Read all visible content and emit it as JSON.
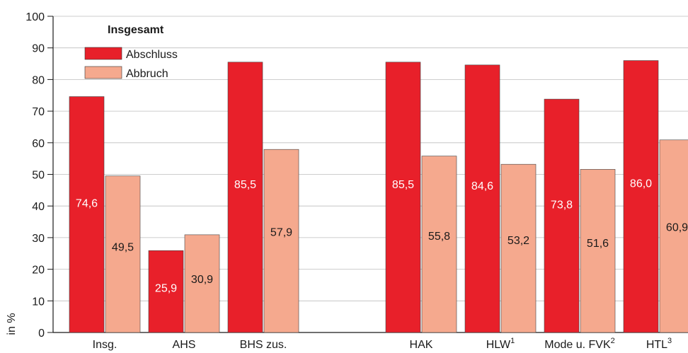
{
  "chart_data": {
    "type": "bar",
    "ylabel": "in %",
    "ylim": [
      0,
      100
    ],
    "yticks": [
      0,
      10,
      20,
      30,
      40,
      50,
      60,
      70,
      80,
      90,
      100
    ],
    "grid": true,
    "legend": {
      "title": "Insgesamt",
      "placement": "top-left"
    },
    "categories": [
      {
        "label": "Insg.",
        "sup": ""
      },
      {
        "label": "AHS",
        "sup": ""
      },
      {
        "label": "BHS zus.",
        "sup": ""
      },
      {
        "label": "HAK",
        "sup": ""
      },
      {
        "label": "HLW",
        "sup": "1"
      },
      {
        "label": "Mode u. FVK",
        "sup": "2"
      },
      {
        "label": "HTL",
        "sup": "3"
      }
    ],
    "series": [
      {
        "name": "Abschluss",
        "color": "#e8202a",
        "label_color": "#ffffff",
        "values": [
          74.6,
          25.9,
          85.5,
          85.5,
          84.6,
          73.8,
          86.0
        ],
        "value_labels": [
          "74,6",
          "25,9",
          "85,5",
          "85,5",
          "84,6",
          "73,8",
          "86,0"
        ]
      },
      {
        "name": "Abbruch",
        "color": "#f5a98e",
        "label_color": "#1a1a1a",
        "values": [
          49.5,
          30.9,
          57.9,
          55.8,
          53.2,
          51.6,
          60.9
        ],
        "value_labels": [
          "49,5",
          "30,9",
          "57,9",
          "55,8",
          "53,2",
          "51,6",
          "60,9"
        ]
      }
    ]
  }
}
